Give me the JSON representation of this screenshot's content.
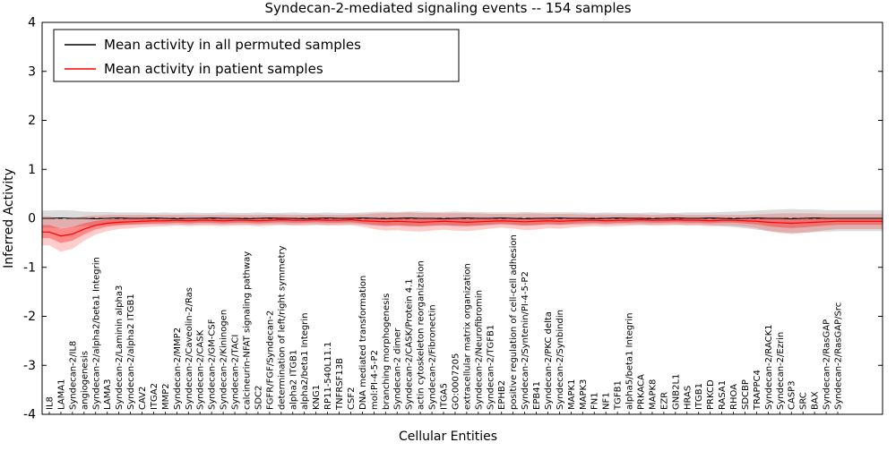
{
  "chart_data": {
    "type": "line",
    "title": "Syndecan-2-mediated signaling events -- 154 samples",
    "xlabel": "Cellular Entities",
    "ylabel": "Inferred Activity",
    "ylim": [
      -4,
      4
    ],
    "yticks": [
      4,
      3,
      2,
      1,
      0,
      -1,
      -2,
      -3,
      -4
    ],
    "grid": false,
    "legend_position": "upper left",
    "categories": [
      "IL8",
      "LAMA1",
      "Syndecan-2/IL8",
      "angiogenesis",
      "Syndecan-2/alpha2/beta1 Integrin",
      "LAMA3",
      "Syndecan-2/Laminin alpha3",
      "Syndecan-2/alpha2 ITGB1",
      "CAV2",
      "ITGA2",
      "MMP2",
      "Syndecan-2/MMP2",
      "Syndecan-2/Caveolin-2/Ras",
      "Syndecan-2/CASK",
      "Syndecan-2/GM-CSF",
      "Syndecan-2/Kininogen",
      "Syndecan-2/TACI",
      "calcineurin-NFAT signaling pathway",
      "SDC2",
      "FGFR/FGF/Syndecan-2",
      "determination of left/right symmetry",
      "alpha2 ITGB1",
      "alpha2/beta1 Integrin",
      "KNG1",
      "RP11-540L11.1",
      "TNFRSF13B",
      "CSF2",
      "DNA mediated transformation",
      "mol:PI-4-5-P2",
      "branching morphogenesis",
      "Syndecan-2 dimer",
      "Syndecan-2/CASK/Protein 4.1",
      "actin cytoskeleton reorganization",
      "Syndecan-2/Fibronectin",
      "ITGA5",
      "GO:0007205",
      "extracellular matrix organization",
      "Syndecan-2/Neurofibromin",
      "Syndecan-2/TGFB1",
      "EPHB2",
      "positive regulation of cell-cell adhesion",
      "Syndecan-2/Syntenin/PI-4-5-P2",
      "EPB41",
      "Syndecan-2/PKC delta",
      "Syndecan-2/Synbindin",
      "MAPK1",
      "MAPK3",
      "FN1",
      "NF1",
      "TGFB1",
      "alpha5/beta1 Integrin",
      "PRKACA",
      "MAPK8",
      "EZR",
      "GNB2L1",
      "HRAS",
      "ITGB1",
      "PRKCD",
      "RASA1",
      "RHOA",
      "SDCBP",
      "TRAPPC4",
      "Syndecan-2/RACK1",
      "Syndecan-2/Ezrin",
      "CASP3",
      "SRC",
      "BAX",
      "Syndecan-2/RasGAP",
      "Syndecan-2/RasGAP/Src"
    ],
    "series": [
      {
        "name": "Mean activity in all permuted samples",
        "color": "#000000",
        "values": [
          0,
          0.01,
          0,
          0,
          -0.01,
          0,
          0.01,
          0,
          0,
          0.01,
          0,
          -0.01,
          0,
          0,
          0.01,
          0,
          0,
          -0.01,
          0,
          0.01,
          0,
          0,
          -0.01,
          0,
          0.01,
          0,
          0,
          0.01,
          0,
          -0.01,
          0,
          0.01,
          0,
          0,
          -0.01,
          0,
          0.01,
          0,
          0,
          0.01,
          0,
          -0.01,
          0,
          0,
          0.01,
          0,
          0,
          -0.01,
          0,
          0.01,
          0,
          0,
          -0.01,
          0,
          0.01,
          0,
          0,
          0.01,
          0,
          -0.01,
          0,
          0.01,
          0,
          0,
          -0.01,
          0,
          0.01,
          0,
          0
        ]
      },
      {
        "name": "Mean activity in patient samples",
        "color": "#ff0000",
        "values": [
          -0.28,
          -0.36,
          -0.32,
          -0.22,
          -0.14,
          -0.1,
          -0.08,
          -0.07,
          -0.06,
          -0.05,
          -0.05,
          -0.04,
          -0.05,
          -0.04,
          -0.04,
          -0.05,
          -0.04,
          -0.04,
          -0.05,
          -0.04,
          -0.03,
          -0.04,
          -0.04,
          -0.03,
          -0.04,
          -0.04,
          -0.03,
          -0.05,
          -0.06,
          -0.07,
          -0.06,
          -0.07,
          -0.08,
          -0.07,
          -0.06,
          -0.07,
          -0.08,
          -0.07,
          -0.06,
          -0.05,
          -0.06,
          -0.07,
          -0.06,
          -0.05,
          -0.06,
          -0.05,
          -0.04,
          -0.04,
          -0.05,
          -0.04,
          -0.04,
          -0.03,
          -0.04,
          -0.04,
          -0.03,
          -0.04,
          -0.04,
          -0.05,
          -0.04,
          -0.04,
          -0.05,
          -0.06,
          -0.08,
          -0.09,
          -0.1,
          -0.09,
          -0.08,
          -0.07,
          -0.06
        ]
      }
    ],
    "bands": [
      {
        "name": "permuted-samples-range",
        "color": "#999999",
        "opacity": 0.35,
        "lo": [
          -0.19,
          -0.2,
          -0.18,
          -0.16,
          -0.15,
          -0.14,
          -0.13,
          -0.13,
          -0.13,
          -0.12,
          -0.13,
          -0.12,
          -0.13,
          -0.12,
          -0.12,
          -0.13,
          -0.12,
          -0.12,
          -0.13,
          -0.12,
          -0.12,
          -0.13,
          -0.12,
          -0.12,
          -0.13,
          -0.12,
          -0.12,
          -0.13,
          -0.15,
          -0.16,
          -0.15,
          -0.16,
          -0.16,
          -0.15,
          -0.15,
          -0.16,
          -0.15,
          -0.15,
          -0.14,
          -0.13,
          -0.14,
          -0.15,
          -0.14,
          -0.13,
          -0.14,
          -0.13,
          -0.13,
          -0.12,
          -0.13,
          -0.12,
          -0.12,
          -0.12,
          -0.13,
          -0.12,
          -0.12,
          -0.13,
          -0.13,
          -0.14,
          -0.16,
          -0.18,
          -0.2,
          -0.23,
          -0.26,
          -0.28,
          -0.3,
          -0.29,
          -0.28,
          -0.27,
          -0.26
        ],
        "hi": [
          0.16,
          0.17,
          0.16,
          0.14,
          0.13,
          0.13,
          0.12,
          0.12,
          0.12,
          0.11,
          0.12,
          0.11,
          0.12,
          0.11,
          0.11,
          0.12,
          0.11,
          0.11,
          0.12,
          0.11,
          0.11,
          0.12,
          0.11,
          0.11,
          0.12,
          0.11,
          0.11,
          0.12,
          0.13,
          0.14,
          0.13,
          0.14,
          0.14,
          0.13,
          0.13,
          0.14,
          0.13,
          0.13,
          0.12,
          0.12,
          0.12,
          0.13,
          0.12,
          0.12,
          0.12,
          0.12,
          0.12,
          0.11,
          0.12,
          0.11,
          0.11,
          0.11,
          0.12,
          0.11,
          0.11,
          0.12,
          0.12,
          0.12,
          0.13,
          0.14,
          0.15,
          0.16,
          0.17,
          0.18,
          0.19,
          0.18,
          0.18,
          0.17,
          0.17
        ]
      },
      {
        "name": "patient-samples-range",
        "color": "#ff0000",
        "opacity": 0.2,
        "inner_scale": 0.45,
        "inner_opacity": 0.33,
        "lo": [
          -0.55,
          -0.68,
          -0.62,
          -0.46,
          -0.33,
          -0.26,
          -0.22,
          -0.2,
          -0.18,
          -0.17,
          -0.16,
          -0.15,
          -0.16,
          -0.15,
          -0.15,
          -0.16,
          -0.15,
          -0.15,
          -0.16,
          -0.15,
          -0.14,
          -0.15,
          -0.15,
          -0.14,
          -0.15,
          -0.15,
          -0.14,
          -0.17,
          -0.22,
          -0.25,
          -0.24,
          -0.26,
          -0.27,
          -0.25,
          -0.23,
          -0.25,
          -0.26,
          -0.24,
          -0.21,
          -0.19,
          -0.21,
          -0.24,
          -0.23,
          -0.2,
          -0.21,
          -0.19,
          -0.17,
          -0.16,
          -0.17,
          -0.16,
          -0.15,
          -0.14,
          -0.15,
          -0.15,
          -0.14,
          -0.15,
          -0.15,
          -0.16,
          -0.15,
          -0.15,
          -0.17,
          -0.2,
          -0.26,
          -0.3,
          -0.32,
          -0.3,
          -0.27,
          -0.24,
          -0.22
        ],
        "hi": [
          0.04,
          -0.02,
          0.0,
          0.04,
          0.06,
          0.07,
          0.07,
          0.07,
          0.07,
          0.07,
          0.07,
          0.07,
          0.07,
          0.07,
          0.07,
          0.07,
          0.07,
          0.07,
          0.07,
          0.07,
          0.08,
          0.07,
          0.07,
          0.08,
          0.07,
          0.07,
          0.08,
          0.08,
          0.1,
          0.11,
          0.11,
          0.12,
          0.11,
          0.11,
          0.1,
          0.11,
          0.1,
          0.1,
          0.09,
          0.09,
          0.09,
          0.1,
          0.1,
          0.09,
          0.09,
          0.09,
          0.08,
          0.08,
          0.08,
          0.08,
          0.08,
          0.08,
          0.07,
          0.08,
          0.08,
          0.07,
          0.07,
          0.07,
          0.07,
          0.07,
          0.07,
          0.08,
          0.09,
          0.1,
          0.1,
          0.1,
          0.1,
          0.09,
          0.09
        ]
      }
    ]
  }
}
